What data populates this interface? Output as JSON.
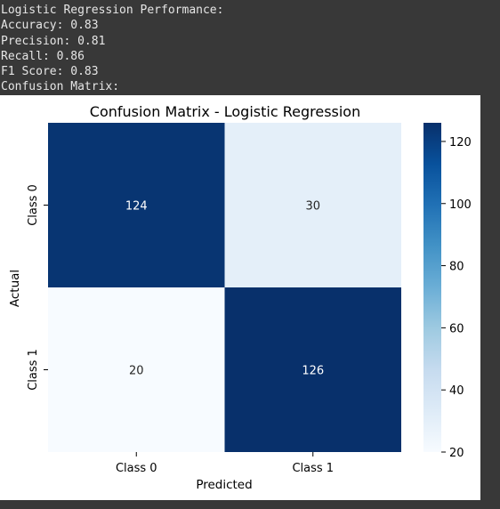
{
  "console": {
    "lines": [
      "Logistic Regression Performance:",
      "Accuracy: 0.83",
      "Precision: 0.81",
      "Recall: 0.86",
      "F1 Score: 0.83",
      "Confusion Matrix:"
    ]
  },
  "chart_data": {
    "type": "heatmap",
    "title": "Confusion Matrix - Logistic Regression",
    "xlabel": "Predicted",
    "ylabel": "Actual",
    "x_categories": [
      "Class 0",
      "Class 1"
    ],
    "y_categories": [
      "Class 0",
      "Class 1"
    ],
    "values": [
      [
        124,
        30
      ],
      [
        20,
        126
      ]
    ],
    "colormap": "Blues",
    "vmin": 20,
    "vmax": 126,
    "colorbar_ticks": [
      20,
      40,
      60,
      80,
      100,
      120
    ],
    "annotations": true,
    "colors": {
      "low": "#f7fbff",
      "high": "#08306b",
      "text_dark": "#262626",
      "text_light": "#ffffff"
    }
  }
}
